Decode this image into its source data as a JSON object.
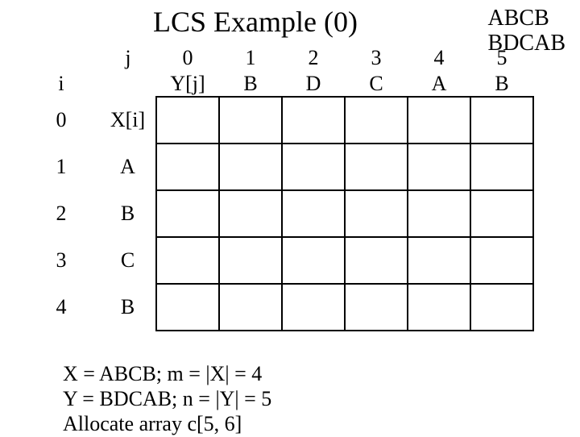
{
  "title": "LCS Example (0)",
  "top_right": {
    "line1": "ABCB",
    "line2": "BDCAB"
  },
  "labels": {
    "j": "j",
    "i": "i",
    "xi": "X[i]",
    "yj": "Y[j]"
  },
  "cols": {
    "c0": {
      "idx": "0",
      "ch": "Y[j]"
    },
    "c1": {
      "idx": "1",
      "ch": "B"
    },
    "c2": {
      "idx": "2",
      "ch": "D"
    },
    "c3": {
      "idx": "3",
      "ch": "C"
    },
    "c4": {
      "idx": "4",
      "ch": "A"
    },
    "c5": {
      "idx": "5",
      "ch": "B"
    }
  },
  "rows": {
    "r0": {
      "idx": "0",
      "ch": "X[i]"
    },
    "r1": {
      "idx": "1",
      "ch": "A"
    },
    "r2": {
      "idx": "2",
      "ch": "B"
    },
    "r3": {
      "idx": "3",
      "ch": "C"
    },
    "r4": {
      "idx": "4",
      "ch": "B"
    }
  },
  "footer": {
    "l1": "X = ABCB;   m = |X| = 4",
    "l2": "Y = BDCAB; n = |Y| = 5",
    "l3": "Allocate array c[5, 6]"
  }
}
